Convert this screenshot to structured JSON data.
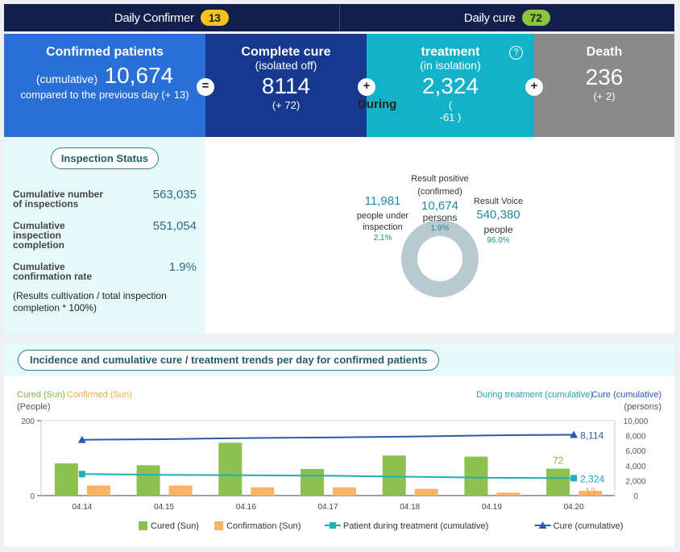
{
  "daily": {
    "confirmer_label": "Daily Confirmer",
    "confirmer_value": "13",
    "cure_label": "Daily cure",
    "cure_value": "72"
  },
  "stats": {
    "confirmed": {
      "title": "Confirmed patients",
      "cumulative_label": "(cumulative)",
      "value": "10,674",
      "change": "compared to the previous day (+ 13)"
    },
    "cure": {
      "title": "Complete cure",
      "sub": "(isolated off)",
      "value": "8114",
      "change": "(+ 72)"
    },
    "treatment": {
      "title": "treatment",
      "sub": "(in isolation)",
      "value": "2,324",
      "change_open": "(",
      "change_value": "-61 )",
      "during_label": "During"
    },
    "death": {
      "title": "Death",
      "value": "236",
      "change": "(+ 2)"
    },
    "operators": {
      "equals": "=",
      "plus": "+"
    }
  },
  "inspection": {
    "title": "Inspection Status",
    "rows": [
      {
        "label_line1": "Cumulative number",
        "label_line2": "of inspections",
        "label_line3": "",
        "value": "563,035"
      },
      {
        "label_line1": "Cumulative",
        "label_line2": "inspection",
        "label_line3": "completion",
        "value": "551,054"
      },
      {
        "label_line1": "Cumulative",
        "label_line2": "confirmation rate",
        "label_line3": "",
        "value": "1.9%"
      }
    ],
    "note_line1": "(Results cultivation / total inspection",
    "note_line2": "completion * 100%)"
  },
  "donut": {
    "under_inspection": {
      "value": "11,981",
      "label1": "people under",
      "label2": "inspection",
      "pct": "2.1%",
      "fraction": 0.021
    },
    "positive": {
      "title1": "Result positive",
      "title2": "(confirmed)",
      "value": "10,674",
      "label": "persons",
      "pct": "1.9%",
      "fraction": 0.019
    },
    "negative": {
      "title": "Result Voice",
      "value": "540,380",
      "label": "people",
      "pct": "96.0%",
      "fraction": 0.96
    },
    "ring_color": "#b8c9cf"
  },
  "trend": {
    "title": "Incidence and cumulative cure / treatment trends per day for confirmed patients",
    "left_legend_cured": "Cured (Sun)",
    "left_legend_confirmed": "Confirmed (Sun)",
    "left_unit": "(People)",
    "right_legend_treatment": "During treatment (cumulative)",
    "right_legend_cure": "Cure (cumulative)",
    "right_unit": "(persons)"
  },
  "chart_data": {
    "type": "bar",
    "categories": [
      "04.14",
      "04.15",
      "04.16",
      "04.17",
      "04.18",
      "04.19",
      "04.20"
    ],
    "left_axis": {
      "ylim": [
        0,
        200
      ],
      "ticks": [
        "0",
        "200"
      ]
    },
    "right_axis": {
      "ylim": [
        0,
        10000
      ],
      "ticks": [
        "0",
        "2,000",
        "4,000",
        "6,000",
        "8,000",
        "10,000"
      ]
    },
    "series": [
      {
        "name": "Cured (Sun)",
        "kind": "bar",
        "axis": "left",
        "color": "#8cc151",
        "values": [
          86,
          81,
          141,
          71,
          107,
          104,
          72
        ]
      },
      {
        "name": "Confirmation (Sun)",
        "kind": "bar",
        "axis": "left",
        "color": "#f7b465",
        "values": [
          27,
          27,
          22,
          22,
          18,
          8,
          13
        ]
      },
      {
        "name": "Patient during treatment (cumulative)",
        "kind": "line",
        "axis": "right",
        "color": "#1fb0b5",
        "values": [
          2873,
          2770,
          2710,
          2645,
          2513,
          2385,
          2324
        ]
      },
      {
        "name": "Cure (cumulative)",
        "kind": "line",
        "axis": "right",
        "color": "#2a5bb0",
        "values": [
          7447,
          7530,
          7680,
          7760,
          7870,
          8042,
          8114
        ]
      }
    ],
    "annotations": {
      "last_cure_bar": "72",
      "last_confirm_bar": "13",
      "last_treatment": "2,324",
      "last_cure": "8,114"
    }
  }
}
